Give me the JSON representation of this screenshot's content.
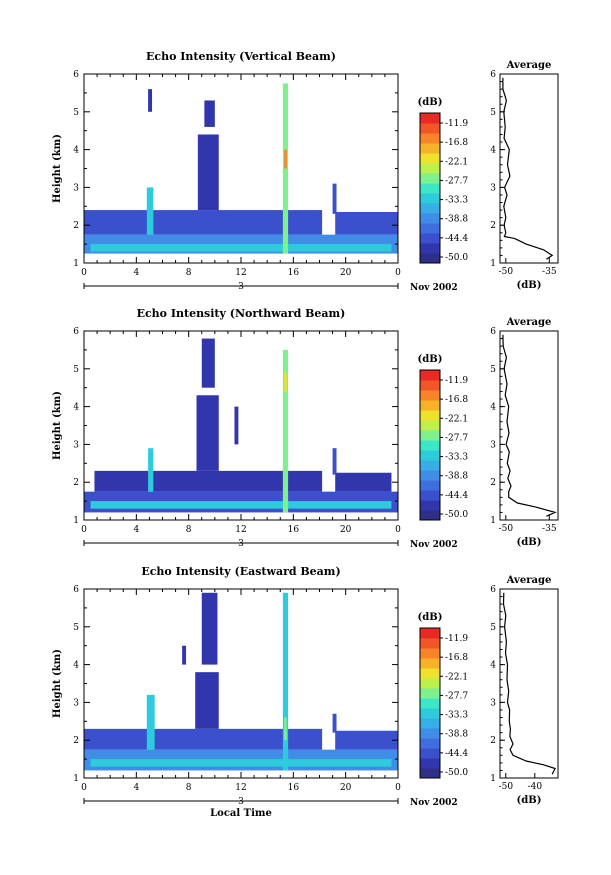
{
  "chart_data": [
    {
      "type": "heatmap",
      "title": "Echo Intensity (Vertical Beam)",
      "ylabel": "Height (km)",
      "xlabel": "",
      "x_ticks": [
        "0",
        "4",
        "8",
        "12",
        "16",
        "20",
        "0"
      ],
      "y_ticks": [
        "1",
        "2",
        "3",
        "4",
        "5",
        "6"
      ],
      "xlim": [
        0,
        24
      ],
      "ylim": [
        1,
        6
      ],
      "date_day": "3",
      "date_label": "Nov 2002",
      "colorbar": {
        "unit": "(dB)",
        "labels": [
          "-11.9",
          "-16.8",
          "-22.1",
          "-27.7",
          "-33.3",
          "-38.8",
          "-44.4",
          "-50.0"
        ],
        "colors": [
          "#2e2f88",
          "#3136ad",
          "#3a50cc",
          "#3f6ede",
          "#3f8de6",
          "#38ade6",
          "#2dcbdc",
          "#3ee6c8",
          "#7ef08e",
          "#bdf04a",
          "#eee22e",
          "#f7b22a",
          "#f78428",
          "#f25526",
          "#e82a24"
        ]
      },
      "cells": [
        {
          "t0": 0.0,
          "t1": 24.0,
          "h0": 1.25,
          "h1": 1.75,
          "db": -38.8
        },
        {
          "t0": 0.5,
          "t1": 23.5,
          "h0": 1.3,
          "h1": 1.5,
          "db": -33.3
        },
        {
          "t0": 0.0,
          "t1": 18.2,
          "h0": 1.75,
          "h1": 2.4,
          "db": -44.4
        },
        {
          "t0": 19.2,
          "t1": 24.0,
          "h0": 1.75,
          "h1": 2.35,
          "db": -44.4
        },
        {
          "t0": 8.7,
          "t1": 10.3,
          "h0": 2.4,
          "h1": 4.4,
          "db": -47.0
        },
        {
          "t0": 9.2,
          "t1": 10.0,
          "h0": 4.6,
          "h1": 5.3,
          "db": -47.0
        },
        {
          "t0": 4.8,
          "t1": 5.3,
          "h0": 1.75,
          "h1": 3.0,
          "db": -33.3
        },
        {
          "t0": 15.2,
          "t1": 15.6,
          "h0": 1.25,
          "h1": 5.75,
          "db": -27.7
        },
        {
          "t0": 15.3,
          "t1": 15.5,
          "h0": 3.5,
          "h1": 4.0,
          "db": -16.8
        },
        {
          "t0": 19.0,
          "t1": 19.3,
          "h0": 2.3,
          "h1": 3.1,
          "db": -44.4
        },
        {
          "t0": 4.9,
          "t1": 5.2,
          "h0": 5.0,
          "h1": 5.6,
          "db": -47.0
        }
      ],
      "average_profile": {
        "title": "Average",
        "xlabel": "(dB)",
        "x_ticks": [
          "-50",
          "-35"
        ],
        "xlim": [
          -52,
          -32
        ],
        "ylim": [
          1,
          6
        ],
        "heights": [
          1.1,
          1.2,
          1.35,
          1.5,
          1.65,
          1.7,
          1.8,
          2.0,
          2.2,
          2.5,
          2.8,
          3.0,
          3.3,
          3.6,
          4.0,
          4.3,
          4.6,
          5.0,
          5.3,
          5.6,
          5.9
        ],
        "values": [
          -36,
          -34,
          -37,
          -43,
          -47,
          -50.5,
          -50,
          -50.6,
          -50,
          -50.7,
          -49.6,
          -50.4,
          -48.6,
          -49.4,
          -48.8,
          -50.6,
          -50.2,
          -50.7,
          -49.8,
          -51,
          -51
        ]
      }
    },
    {
      "type": "heatmap",
      "title": "Echo Intensity (Northward Beam)",
      "ylabel": "Height (km)",
      "xlabel": "",
      "x_ticks": [
        "0",
        "4",
        "8",
        "12",
        "16",
        "20",
        "0"
      ],
      "y_ticks": [
        "1",
        "2",
        "3",
        "4",
        "5",
        "6"
      ],
      "xlim": [
        0,
        24
      ],
      "ylim": [
        1,
        6
      ],
      "date_day": "3",
      "date_label": "Nov 2002",
      "colorbar": {
        "unit": "(dB)",
        "labels": [
          "-11.9",
          "-16.8",
          "-22.1",
          "-27.7",
          "-33.3",
          "-38.8",
          "-44.4",
          "-50.0"
        ],
        "colors": [
          "#2e2f88",
          "#3136ad",
          "#3a50cc",
          "#3f6ede",
          "#3f8de6",
          "#38ade6",
          "#2dcbdc",
          "#3ee6c8",
          "#7ef08e",
          "#bdf04a",
          "#eee22e",
          "#f7b22a",
          "#f78428",
          "#f25526",
          "#e82a24"
        ]
      },
      "cells": [
        {
          "t0": 0.0,
          "t1": 24.0,
          "h0": 1.2,
          "h1": 1.75,
          "db": -44.4
        },
        {
          "t0": 0.5,
          "t1": 23.5,
          "h0": 1.3,
          "h1": 1.5,
          "db": -33.3
        },
        {
          "t0": 0.8,
          "t1": 18.2,
          "h0": 1.75,
          "h1": 2.3,
          "db": -47.0
        },
        {
          "t0": 19.2,
          "t1": 23.5,
          "h0": 1.75,
          "h1": 2.25,
          "db": -47.0
        },
        {
          "t0": 8.6,
          "t1": 10.3,
          "h0": 2.3,
          "h1": 4.3,
          "db": -47.0
        },
        {
          "t0": 9.0,
          "t1": 10.0,
          "h0": 4.5,
          "h1": 5.8,
          "db": -47.0
        },
        {
          "t0": 4.9,
          "t1": 5.3,
          "h0": 1.75,
          "h1": 2.9,
          "db": -33.3
        },
        {
          "t0": 15.2,
          "t1": 15.6,
          "h0": 1.2,
          "h1": 5.5,
          "db": -27.7
        },
        {
          "t0": 15.3,
          "t1": 15.5,
          "h0": 4.4,
          "h1": 4.9,
          "db": -22.1
        },
        {
          "t0": 19.0,
          "t1": 19.3,
          "h0": 2.2,
          "h1": 2.9,
          "db": -44.4
        },
        {
          "t0": 11.5,
          "t1": 11.8,
          "h0": 3.0,
          "h1": 4.0,
          "db": -47.0
        }
      ],
      "average_profile": {
        "title": "Average",
        "xlabel": "(dB)",
        "x_ticks": [
          "-50",
          "-35"
        ],
        "xlim": [
          -52,
          -32
        ],
        "ylim": [
          1,
          6
        ],
        "heights": [
          1.1,
          1.2,
          1.35,
          1.45,
          1.6,
          1.75,
          1.9,
          2.1,
          2.3,
          2.5,
          2.8,
          3.0,
          3.3,
          3.6,
          4.0,
          4.3,
          4.6,
          5.0,
          5.3,
          5.6,
          5.9
        ],
        "values": [
          -36,
          -33,
          -40,
          -46,
          -49,
          -49,
          -48.2,
          -49.3,
          -48.5,
          -49.5,
          -48.8,
          -49.9,
          -48.9,
          -49.6,
          -49,
          -50.2,
          -49.6,
          -50.6,
          -49.8,
          -50.9,
          -51
        ]
      }
    },
    {
      "type": "heatmap",
      "title": "Echo Intensity (Eastward Beam)",
      "ylabel": "Height (km)",
      "xlabel": "Local Time",
      "x_ticks": [
        "0",
        "4",
        "8",
        "12",
        "16",
        "20",
        "0"
      ],
      "y_ticks": [
        "1",
        "2",
        "3",
        "4",
        "5",
        "6"
      ],
      "xlim": [
        0,
        24
      ],
      "ylim": [
        1,
        6
      ],
      "date_day": "3",
      "date_label": "Nov 2002",
      "colorbar": {
        "unit": "(dB)",
        "labels": [
          "-11.9",
          "-16.8",
          "-22.1",
          "-27.7",
          "-33.3",
          "-38.8",
          "-44.4",
          "-50.0"
        ],
        "colors": [
          "#2e2f88",
          "#3136ad",
          "#3a50cc",
          "#3f6ede",
          "#3f8de6",
          "#38ade6",
          "#2dcbdc",
          "#3ee6c8",
          "#7ef08e",
          "#bdf04a",
          "#eee22e",
          "#f7b22a",
          "#f78428",
          "#f25526",
          "#e82a24"
        ]
      },
      "cells": [
        {
          "t0": 0.0,
          "t1": 24.0,
          "h0": 1.2,
          "h1": 1.75,
          "db": -38.8
        },
        {
          "t0": 0.5,
          "t1": 23.5,
          "h0": 1.3,
          "h1": 1.5,
          "db": -33.3
        },
        {
          "t0": 0.0,
          "t1": 18.2,
          "h0": 1.75,
          "h1": 2.3,
          "db": -44.4
        },
        {
          "t0": 19.2,
          "t1": 24.0,
          "h0": 1.75,
          "h1": 2.25,
          "db": -44.4
        },
        {
          "t0": 8.5,
          "t1": 10.3,
          "h0": 2.3,
          "h1": 3.8,
          "db": -47.0
        },
        {
          "t0": 9.0,
          "t1": 10.2,
          "h0": 4.0,
          "h1": 5.9,
          "db": -47.0
        },
        {
          "t0": 4.8,
          "t1": 5.4,
          "h0": 1.75,
          "h1": 3.2,
          "db": -33.3
        },
        {
          "t0": 15.2,
          "t1": 15.6,
          "h0": 1.2,
          "h1": 5.9,
          "db": -33.3
        },
        {
          "t0": 15.3,
          "t1": 15.5,
          "h0": 2.0,
          "h1": 2.6,
          "db": -27.7
        },
        {
          "t0": 19.0,
          "t1": 19.3,
          "h0": 2.2,
          "h1": 2.7,
          "db": -44.4
        },
        {
          "t0": 7.5,
          "t1": 7.8,
          "h0": 4.0,
          "h1": 4.5,
          "db": -47.0
        }
      ],
      "average_profile": {
        "title": "Average",
        "xlabel": "(dB)",
        "x_ticks": [
          "-50",
          "-40"
        ],
        "xlim": [
          -52,
          -32
        ],
        "ylim": [
          1,
          6
        ],
        "heights": [
          1.1,
          1.25,
          1.35,
          1.45,
          1.6,
          1.75,
          1.9,
          2.1,
          2.3,
          2.5,
          2.8,
          3.0,
          3.3,
          3.6,
          4.0,
          4.3,
          4.6,
          5.0,
          5.3,
          5.6,
          5.9
        ],
        "values": [
          -34,
          -33,
          -37,
          -43,
          -47.5,
          -48.5,
          -47.5,
          -48.6,
          -48.4,
          -48.8,
          -48.7,
          -49.4,
          -49,
          -49.6,
          -49.4,
          -50.1,
          -49.8,
          -50.4,
          -50,
          -50.8,
          -50.7
        ]
      }
    }
  ]
}
